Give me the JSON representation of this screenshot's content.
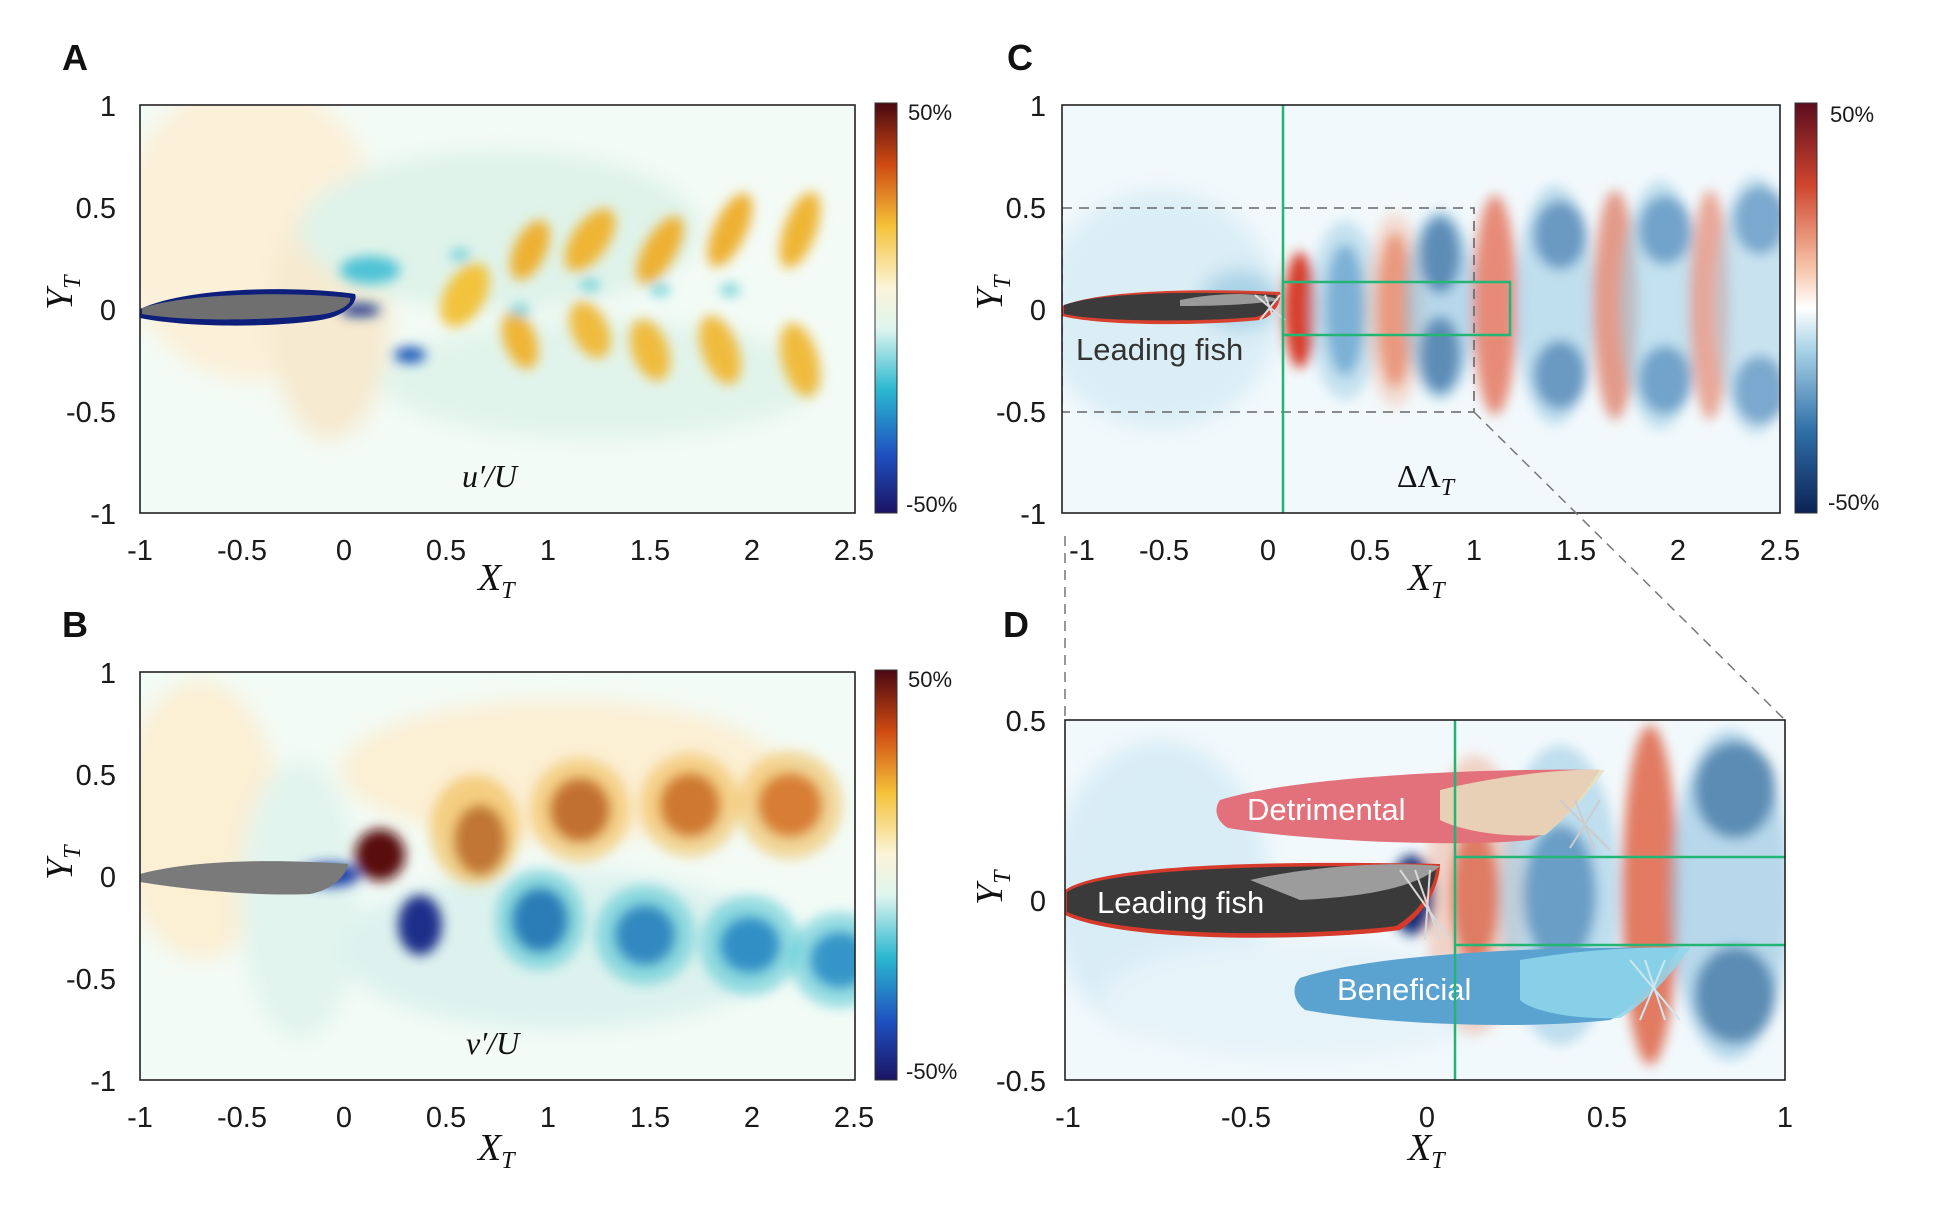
{
  "chart_data": [
    {
      "panel": "A",
      "type": "heatmap",
      "field_label": "u′/U",
      "xlabel": "X",
      "xlabel_sub": "T",
      "ylabel": "Y",
      "ylabel_sub": "T",
      "xlim": [
        -1,
        2.5
      ],
      "ylim": [
        -1,
        1
      ],
      "xticks": [
        "-1",
        "-0.5",
        "0",
        "0.5",
        "1",
        "1.5",
        "2",
        "2.5"
      ],
      "xtick_values": [
        -1,
        -0.5,
        0,
        0.5,
        1,
        1.5,
        2,
        2.5
      ],
      "yticks": [
        "1",
        "0.5",
        "0",
        "-0.5",
        "-1"
      ],
      "ytick_values": [
        1,
        0.5,
        0,
        -0.5,
        -1
      ],
      "colorbar": {
        "max_label": "50%",
        "min_label": "-50%",
        "palette": "jet-like"
      }
    },
    {
      "panel": "B",
      "type": "heatmap",
      "field_label": "v′/U",
      "xlabel": "X",
      "xlabel_sub": "T",
      "ylabel": "Y",
      "ylabel_sub": "T",
      "xlim": [
        -1,
        2.5
      ],
      "ylim": [
        -1,
        1
      ],
      "xticks": [
        "-1",
        "-0.5",
        "0",
        "0.5",
        "1",
        "1.5",
        "2",
        "2.5"
      ],
      "xtick_values": [
        -1,
        -0.5,
        0,
        0.5,
        1,
        1.5,
        2,
        2.5
      ],
      "yticks": [
        "1",
        "0.5",
        "0",
        "-0.5",
        "-1"
      ],
      "ytick_values": [
        1,
        0.5,
        0,
        -0.5,
        -1
      ],
      "colorbar": {
        "max_label": "50%",
        "min_label": "-50%",
        "palette": "jet-like"
      }
    },
    {
      "panel": "C",
      "type": "heatmap",
      "field_label": "ΔΛ",
      "field_label_sub": "T",
      "annotation": "Leading fish",
      "xlabel": "X",
      "xlabel_sub": "T",
      "ylabel": "Y",
      "ylabel_sub": "T",
      "xlim": [
        -1.1,
        2.5
      ],
      "ylim": [
        -1,
        1
      ],
      "xticks": [
        "-1",
        "-0.5",
        "0",
        "0.5",
        "1",
        "1.5",
        "2",
        "2.5"
      ],
      "xtick_values": [
        -1,
        -0.5,
        0,
        0.5,
        1,
        1.5,
        2,
        2.5
      ],
      "yticks": [
        "1",
        "0.5",
        "0",
        "-0.5",
        "-1"
      ],
      "ytick_values": [
        1,
        0.5,
        0,
        -0.5,
        -1
      ],
      "colorbar": {
        "max_label": "50%",
        "min_label": "-50%",
        "palette": "red-blue diverging"
      },
      "inset_box": {
        "x": [
          -1,
          1
        ],
        "y": [
          -0.5,
          0.5
        ]
      },
      "green_line_x": 0.1,
      "green_box": {
        "x": [
          0.1,
          1.2
        ],
        "y": [
          -0.13,
          0.13
        ]
      }
    },
    {
      "panel": "D",
      "type": "heatmap",
      "labels": [
        "Leading fish",
        "Detrimental",
        "Beneficial"
      ],
      "xlabel": "X",
      "xlabel_sub": "T",
      "ylabel": "Y",
      "ylabel_sub": "T",
      "xlim": [
        -1,
        1
      ],
      "ylim": [
        -0.5,
        0.5
      ],
      "xticks": [
        "-1",
        "-0.5",
        "0",
        "0.5",
        "1"
      ],
      "xtick_values": [
        -1,
        -0.5,
        0,
        0.5,
        1
      ],
      "yticks": [
        "0.5",
        "0",
        "-0.5"
      ],
      "ytick_values": [
        0.5,
        0,
        -0.5
      ],
      "green_line_x": 0.09,
      "green_band_y": [
        -0.13,
        0.11
      ]
    }
  ],
  "colors": {
    "fish": "#3a3a3a",
    "green": "#22b573",
    "detrimental": "#e2717b",
    "beneficial": "#5aa2cf"
  }
}
